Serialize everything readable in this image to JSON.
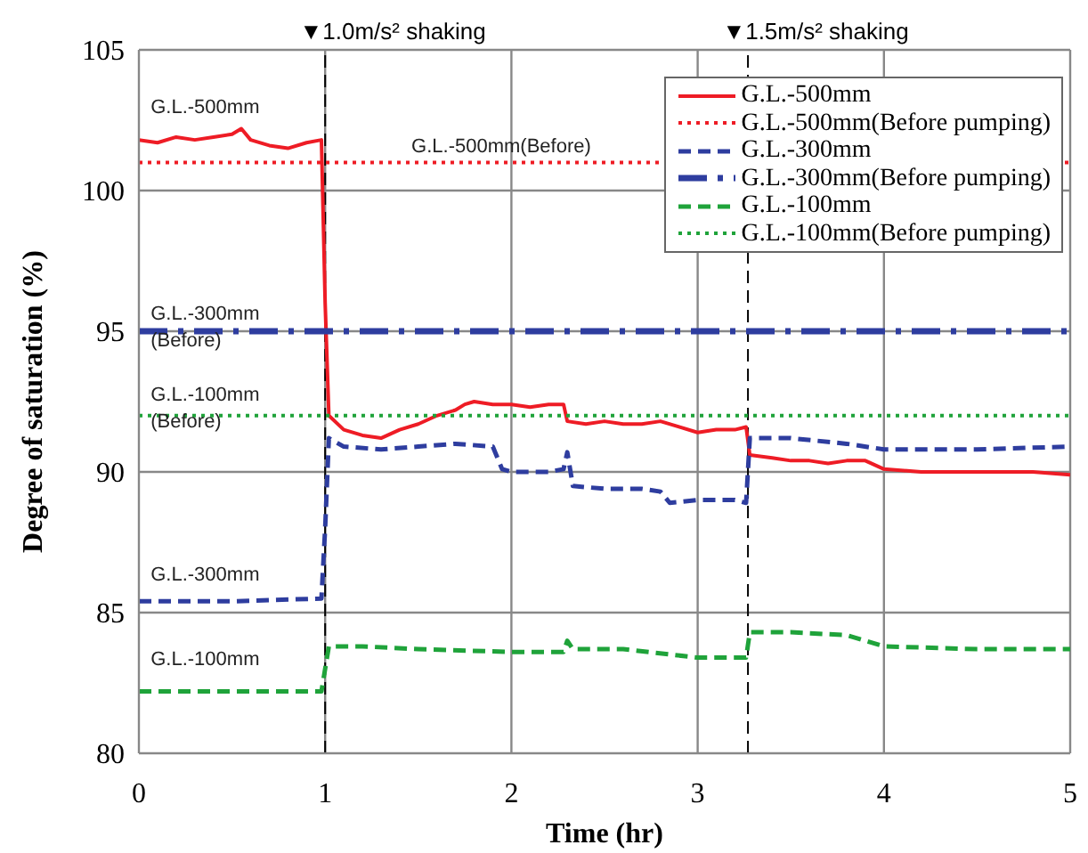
{
  "chart_data": {
    "type": "line",
    "xlabel": "Time (hr)",
    "ylabel": "Degree of saturation (%)",
    "xlim": [
      0,
      5
    ],
    "xticks": [
      0,
      1,
      2,
      3,
      4,
      5
    ],
    "ylim": [
      80,
      105
    ],
    "yticks": [
      80,
      85,
      90,
      95,
      100,
      105
    ],
    "grid": true,
    "legend": "top right",
    "marker": "none",
    "series": [
      {
        "name": "G.L.-500mm",
        "color": "#ee1c25",
        "line_style": "solid",
        "x": [
          0,
          0.1,
          0.2,
          0.3,
          0.4,
          0.5,
          0.55,
          0.6,
          0.7,
          0.8,
          0.9,
          0.98,
          1.0,
          1.02,
          1.1,
          1.2,
          1.3,
          1.4,
          1.5,
          1.6,
          1.7,
          1.75,
          1.8,
          1.9,
          2.0,
          2.1,
          2.2,
          2.28,
          2.3,
          2.4,
          2.5,
          2.6,
          2.7,
          2.8,
          2.9,
          3.0,
          3.1,
          3.2,
          3.26,
          3.28,
          3.4,
          3.5,
          3.6,
          3.7,
          3.8,
          3.9,
          4.0,
          4.2,
          4.4,
          4.6,
          4.8,
          5.0
        ],
        "values": [
          101.8,
          101.7,
          101.9,
          101.8,
          101.9,
          102.0,
          102.2,
          101.8,
          101.6,
          101.5,
          101.7,
          101.8,
          96,
          92.0,
          91.5,
          91.3,
          91.2,
          91.5,
          91.7,
          92.0,
          92.2,
          92.4,
          92.5,
          92.4,
          92.4,
          92.3,
          92.4,
          92.4,
          91.8,
          91.7,
          91.8,
          91.7,
          91.7,
          91.8,
          91.6,
          91.4,
          91.5,
          91.5,
          91.6,
          90.6,
          90.5,
          90.4,
          90.4,
          90.3,
          90.4,
          90.4,
          90.1,
          90.0,
          90.0,
          90.0,
          90.0,
          89.9
        ]
      },
      {
        "name": "G.L.-500mm(Before pumping)",
        "color": "#ee1c25",
        "line_style": "dotted",
        "x": [
          0,
          5
        ],
        "values": [
          101,
          101
        ]
      },
      {
        "name": "G.L.-300mm",
        "color": "#2e3d9f",
        "line_style": "dashed",
        "x": [
          0,
          0.5,
          0.98,
          1.0,
          1.02,
          1.1,
          1.3,
          1.5,
          1.7,
          1.9,
          1.95,
          2.0,
          2.2,
          2.28,
          2.3,
          2.33,
          2.5,
          2.7,
          2.8,
          2.85,
          3.0,
          3.2,
          3.26,
          3.28,
          3.5,
          3.8,
          4.0,
          4.5,
          5.0
        ],
        "values": [
          85.4,
          85.4,
          85.5,
          88,
          91.2,
          90.9,
          90.8,
          90.9,
          91.0,
          90.9,
          90.1,
          90.0,
          90.0,
          90.1,
          90.7,
          89.5,
          89.4,
          89.4,
          89.3,
          88.9,
          89.0,
          89.0,
          88.9,
          91.2,
          91.2,
          91.0,
          90.8,
          90.8,
          90.9
        ]
      },
      {
        "name": "G.L.-300mm(Before pumping)",
        "color": "#2e3d9f",
        "line_style": "dashdot",
        "x": [
          0,
          5
        ],
        "values": [
          95,
          95
        ]
      },
      {
        "name": "G.L.-100mm",
        "color": "#1fa33a",
        "line_style": "dashed",
        "x": [
          0,
          0.5,
          0.98,
          1.0,
          1.02,
          1.2,
          1.5,
          2.0,
          2.28,
          2.3,
          2.33,
          2.6,
          3.0,
          3.26,
          3.28,
          3.5,
          3.8,
          4.0,
          4.5,
          5.0
        ],
        "values": [
          82.2,
          82.2,
          82.2,
          83.0,
          83.8,
          83.8,
          83.7,
          83.6,
          83.6,
          84.0,
          83.7,
          83.7,
          83.4,
          83.4,
          84.3,
          84.3,
          84.2,
          83.8,
          83.7,
          83.7
        ]
      },
      {
        "name": "G.L.-100mm(Before pumping)",
        "color": "#1fa33a",
        "line_style": "dotted",
        "x": [
          0,
          5
        ],
        "values": [
          92,
          92
        ]
      }
    ],
    "ref_lines": [
      {
        "axis": "x",
        "value": 1,
        "label": "▼1.0m/s² shaking",
        "color": "#000000",
        "line_style": "dashed"
      },
      {
        "axis": "x",
        "value": 3.27,
        "label": "▼1.5m/s² shaking",
        "color": "#000000",
        "line_style": "dashed"
      }
    ],
    "annotations": [
      "G.L.-500mm",
      "G.L.-500mm(Before)",
      "G.L.-300mm (Before)",
      "G.L.-100mm (Before)",
      "G.L.-300mm",
      "G.L.-100mm"
    ]
  }
}
